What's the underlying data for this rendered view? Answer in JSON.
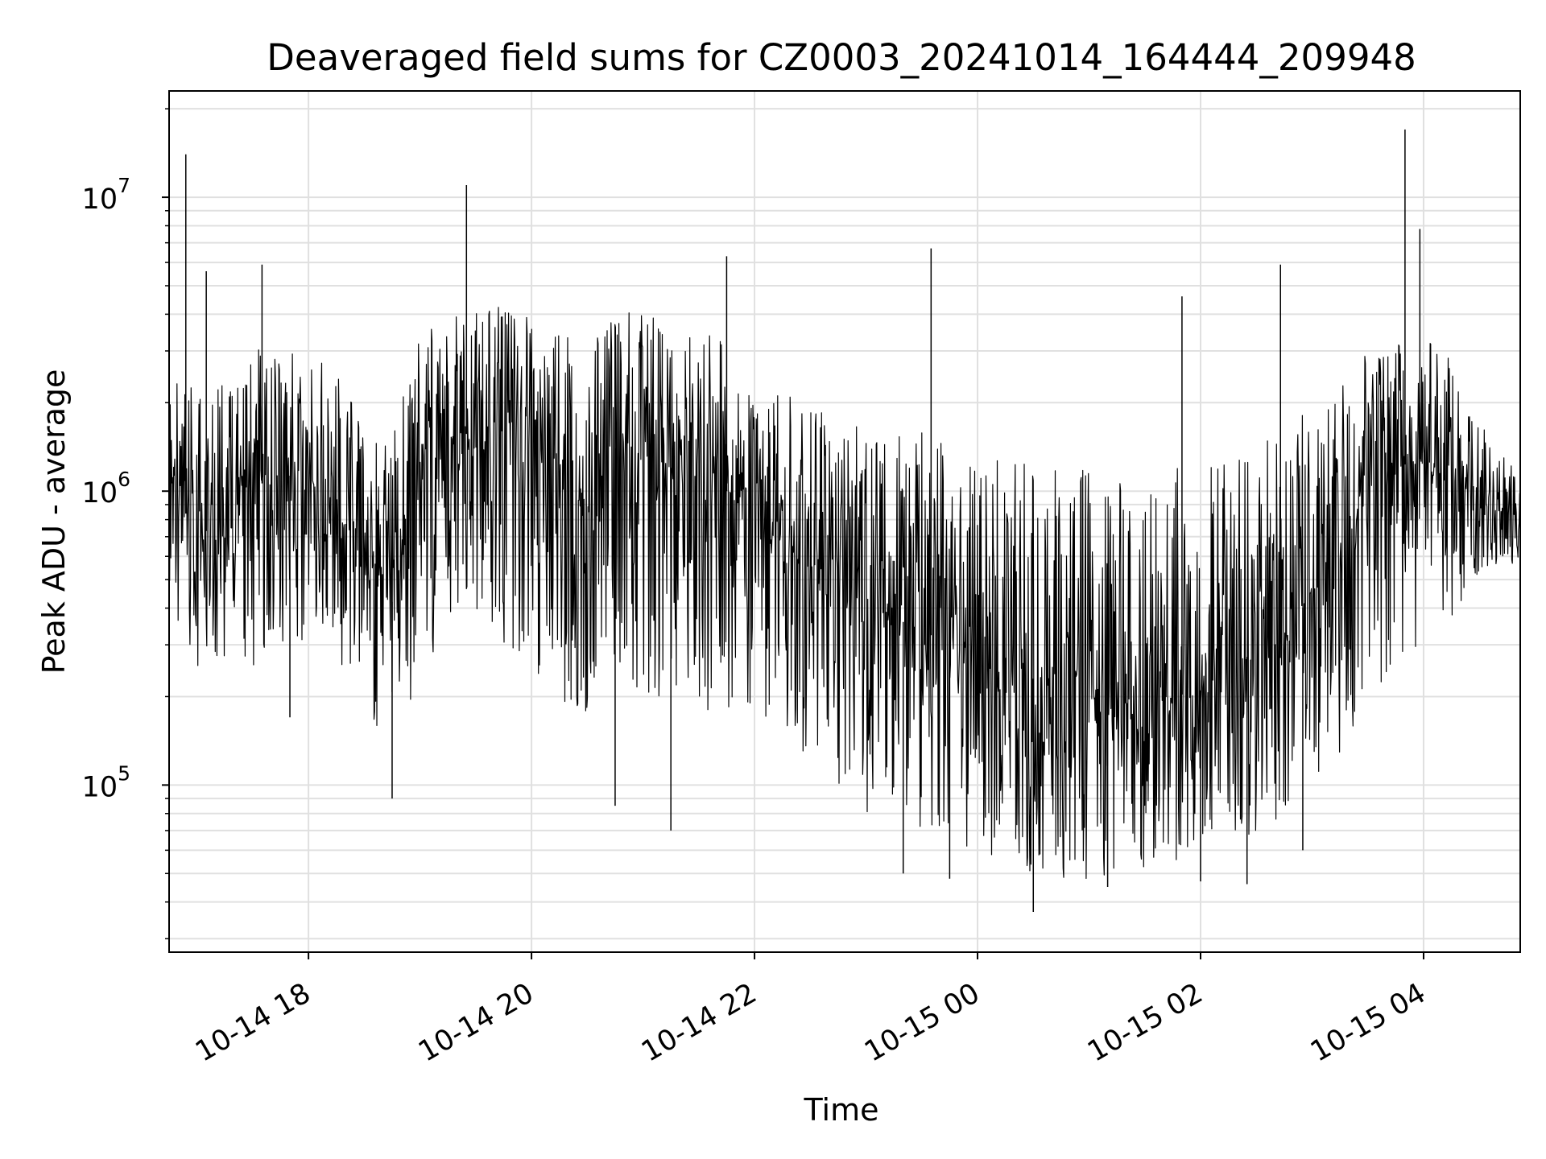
{
  "chart_data": {
    "type": "line",
    "title": "Deaveraged field sums for CZ0003_20241014_164444_209948",
    "xlabel": "Time",
    "ylabel": "Peak ADU - average",
    "yscale": "log",
    "grid": true,
    "legend": "none",
    "line_color": "#000000",
    "grid_color": "#e0e0e0",
    "xlim": [
      "2024-10-14T16:45",
      "2024-10-15T04:52"
    ],
    "ylim": [
      27000,
      23000000
    ],
    "x_ticks": [
      {
        "value": "2024-10-14T18:00",
        "label": "10-14 18"
      },
      {
        "value": "2024-10-14T20:00",
        "label": "10-14 20"
      },
      {
        "value": "2024-10-14T22:00",
        "label": "10-14 22"
      },
      {
        "value": "2024-10-15T00:00",
        "label": "10-15 00"
      },
      {
        "value": "2024-10-15T02:00",
        "label": "10-15 02"
      },
      {
        "value": "2024-10-15T04:00",
        "label": "10-15 04"
      }
    ],
    "y_ticks": [
      {
        "value": 100000,
        "base": "10",
        "exp": "5"
      },
      {
        "value": 1000000,
        "base": "10",
        "exp": "6"
      },
      {
        "value": 10000000,
        "base": "10",
        "exp": "7"
      }
    ],
    "series": [
      {
        "x": [
          "2024-10-14T16:45",
          "2024-10-14T17:00",
          "2024-10-14T17:15",
          "2024-10-14T17:30",
          "2024-10-14T17:45",
          "2024-10-14T18:00",
          "2024-10-14T18:15",
          "2024-10-14T18:30",
          "2024-10-14T18:45",
          "2024-10-14T19:00",
          "2024-10-14T19:15",
          "2024-10-14T19:30",
          "2024-10-14T19:45",
          "2024-10-14T20:00",
          "2024-10-14T20:15",
          "2024-10-14T20:30",
          "2024-10-14T20:45",
          "2024-10-14T21:00",
          "2024-10-14T21:15",
          "2024-10-14T21:30",
          "2024-10-14T21:45",
          "2024-10-14T22:00",
          "2024-10-14T22:15",
          "2024-10-14T22:30",
          "2024-10-14T22:45",
          "2024-10-14T23:00",
          "2024-10-14T23:15",
          "2024-10-14T23:30",
          "2024-10-14T23:45",
          "2024-10-15T00:00",
          "2024-10-15T00:15",
          "2024-10-15T00:30",
          "2024-10-15T00:45",
          "2024-10-15T01:00",
          "2024-10-15T01:15",
          "2024-10-15T01:30",
          "2024-10-15T01:45",
          "2024-10-15T02:00",
          "2024-10-15T02:15",
          "2024-10-15T02:30",
          "2024-10-15T02:45",
          "2024-10-15T03:00",
          "2024-10-15T03:15",
          "2024-10-15T03:30",
          "2024-10-15T03:45",
          "2024-10-15T04:00",
          "2024-10-15T04:15",
          "2024-10-15T04:30",
          "2024-10-15T04:45",
          "2024-10-15T04:52"
        ],
        "median": [
          1100000,
          700000,
          800000,
          1000000,
          1200000,
          1000000,
          800000,
          600000,
          420000,
          1300000,
          1500000,
          1600000,
          1700000,
          1600000,
          1200000,
          900000,
          1400000,
          1400000,
          1200000,
          1200000,
          1000000,
          900000,
          700000,
          550000,
          480000,
          420000,
          380000,
          320000,
          330000,
          300000,
          250000,
          230000,
          210000,
          220000,
          200000,
          190000,
          200000,
          210000,
          260000,
          280000,
          320000,
          450000,
          600000,
          1000000,
          1200000,
          1300000,
          1100000,
          950000,
          900000,
          700000
        ],
        "upper": [
          2500000,
          2200000,
          2400000,
          3000000,
          3200000,
          3000000,
          2500000,
          1800000,
          1500000,
          3500000,
          4000000,
          4200000,
          4500000,
          4000000,
          3500000,
          3000000,
          4000000,
          4200000,
          3800000,
          3500000,
          3200000,
          3000000,
          2500000,
          2000000,
          1800000,
          1800000,
          1700000,
          1600000,
          1500000,
          1400000,
          1300000,
          1300000,
          1200000,
          1200000,
          1100000,
          1100000,
          1200000,
          1200000,
          1300000,
          1500000,
          1600000,
          2000000,
          2500000,
          3000000,
          3200000,
          3400000,
          2800000,
          1800000,
          1300000,
          1100000
        ],
        "lower": [
          400000,
          250000,
          250000,
          250000,
          300000,
          300000,
          250000,
          200000,
          120000,
          250000,
          300000,
          350000,
          300000,
          250000,
          200000,
          150000,
          200000,
          200000,
          200000,
          180000,
          180000,
          170000,
          150000,
          120000,
          100000,
          80000,
          70000,
          65000,
          65000,
          60000,
          55000,
          50000,
          48000,
          48000,
          50000,
          50000,
          55000,
          55000,
          60000,
          65000,
          70000,
          90000,
          120000,
          200000,
          250000,
          300000,
          350000,
          500000,
          600000,
          500000
        ]
      }
    ],
    "spikes": [
      {
        "x": "2024-10-14T16:54",
        "value": 14000000
      },
      {
        "x": "2024-10-14T17:05",
        "value": 5600000
      },
      {
        "x": "2024-10-14T17:35",
        "value": 5900000
      },
      {
        "x": "2024-10-14T19:25",
        "value": 11000000
      },
      {
        "x": "2024-10-14T21:45",
        "value": 6300000
      },
      {
        "x": "2024-10-14T23:35",
        "value": 6700000
      },
      {
        "x": "2024-10-15T01:50",
        "value": 4600000
      },
      {
        "x": "2024-10-15T02:43",
        "value": 5900000
      },
      {
        "x": "2024-10-15T03:50",
        "value": 17000000
      },
      {
        "x": "2024-10-15T03:58",
        "value": 7800000
      },
      {
        "x": "2024-10-14T17:50",
        "value": 170000
      },
      {
        "x": "2024-10-14T18:45",
        "value": 90000
      },
      {
        "x": "2024-10-14T20:45",
        "value": 85000
      },
      {
        "x": "2024-10-14T21:15",
        "value": 70000
      },
      {
        "x": "2024-10-14T23:20",
        "value": 50000
      },
      {
        "x": "2024-10-14T23:45",
        "value": 48000
      },
      {
        "x": "2024-10-15T00:30",
        "value": 37000
      },
      {
        "x": "2024-10-15T01:10",
        "value": 45000
      },
      {
        "x": "2024-10-15T02:00",
        "value": 47000
      },
      {
        "x": "2024-10-15T02:25",
        "value": 46000
      },
      {
        "x": "2024-10-15T02:55",
        "value": 60000
      }
    ]
  }
}
